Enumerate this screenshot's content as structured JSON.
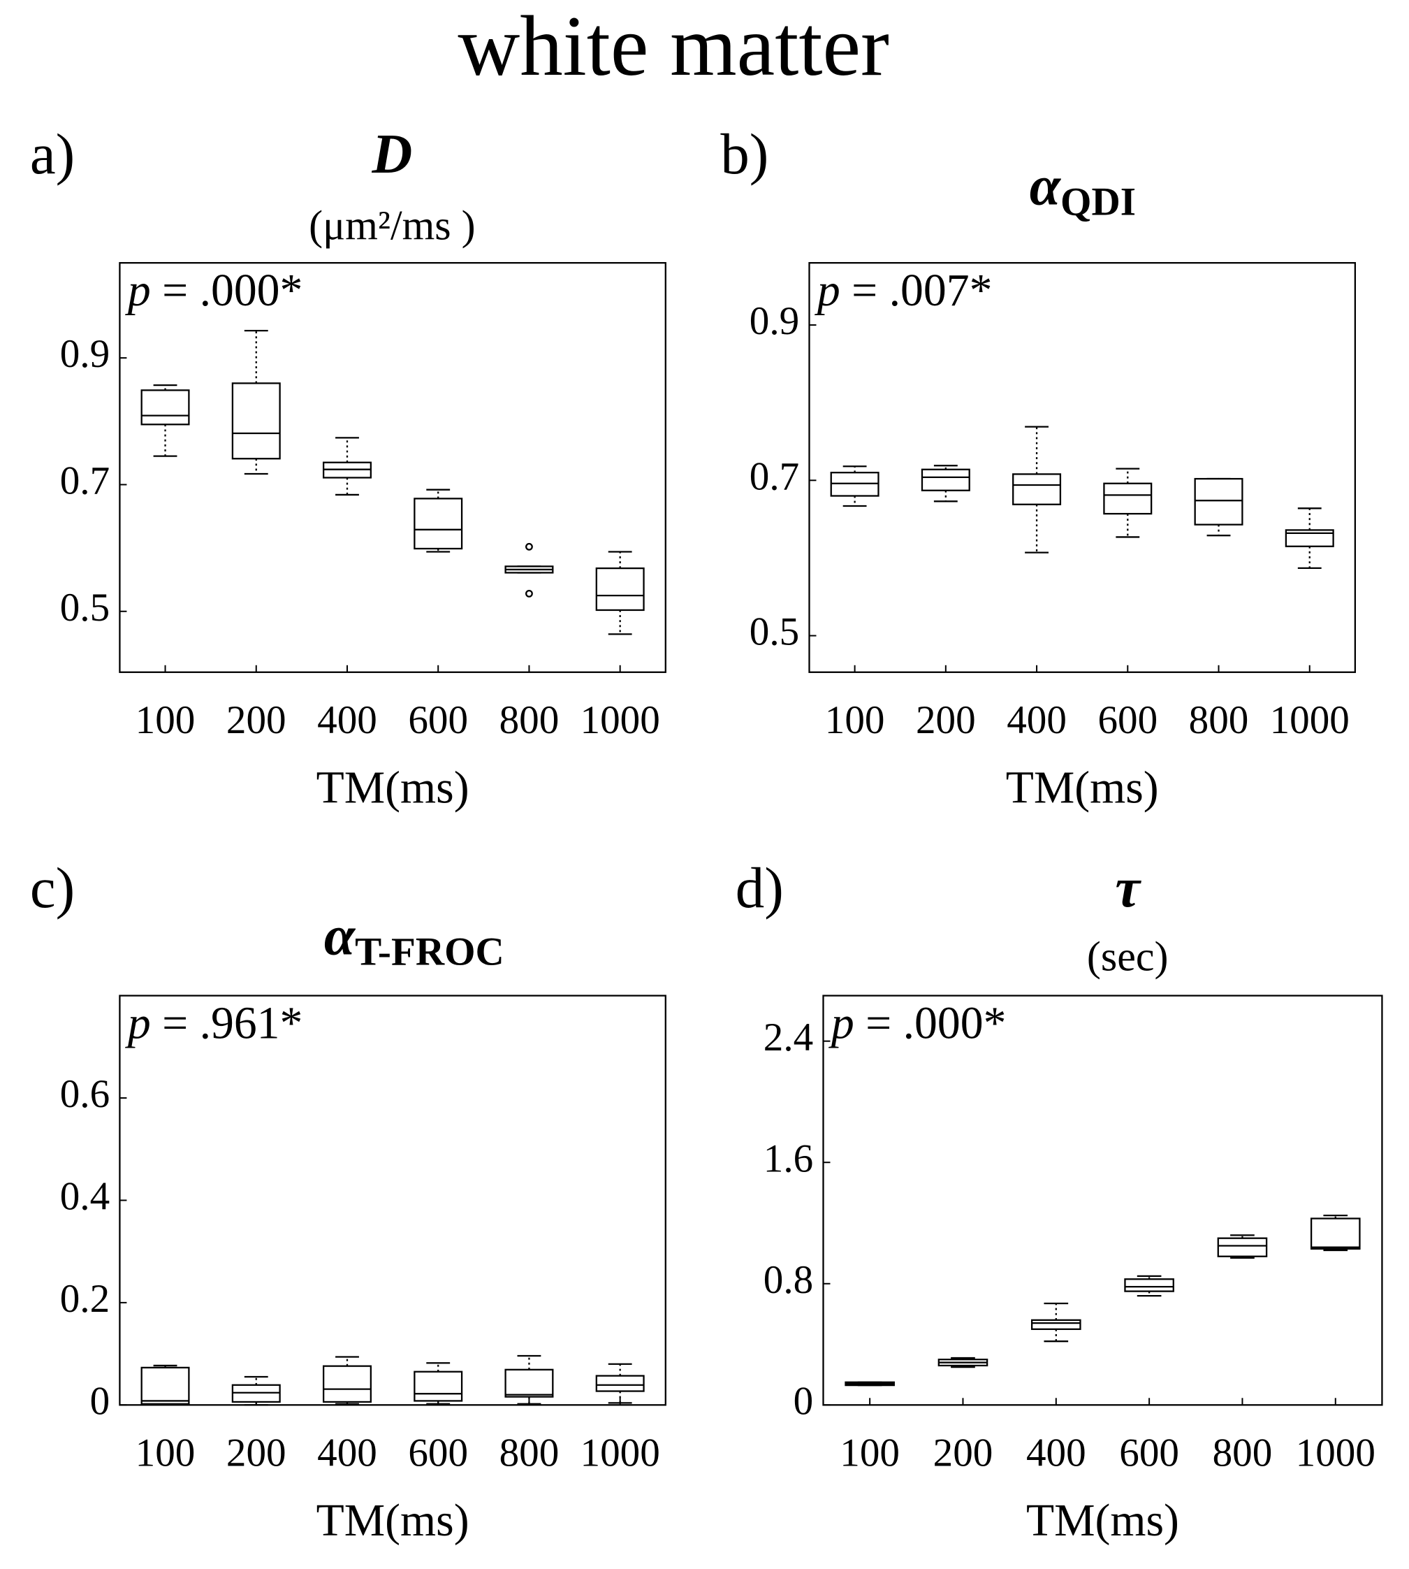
{
  "title": "white matter",
  "chart_data": [
    {
      "type": "box",
      "panel_label": "a)",
      "title": "D",
      "subtitle": "(μm²/ms )",
      "annotation_symbol": "p",
      "annotation": "= .000*",
      "x_label": "TM(ms)",
      "categories": [
        "100",
        "200",
        "400",
        "600",
        "800",
        "1000"
      ],
      "boxes": [
        {
          "min": 0.745,
          "q1": 0.795,
          "median": 0.809,
          "q3": 0.849,
          "max": 0.857
        },
        {
          "min": 0.717,
          "q1": 0.741,
          "median": 0.781,
          "q3": 0.86,
          "max": 0.943
        },
        {
          "min": 0.684,
          "q1": 0.711,
          "median": 0.724,
          "q3": 0.735,
          "max": 0.774
        },
        {
          "min": 0.594,
          "q1": 0.599,
          "median": 0.629,
          "q3": 0.678,
          "max": 0.692
        },
        {
          "min": 0.561,
          "q1": 0.561,
          "median": 0.566,
          "q3": 0.571,
          "max": 0.571,
          "outliers": [
            0.602,
            0.528
          ]
        },
        {
          "min": 0.464,
          "q1": 0.502,
          "median": 0.525,
          "q3": 0.568,
          "max": 0.594
        }
      ],
      "ylim": [
        0.404,
        1.05
      ],
      "yticks": [
        0.5,
        0.7,
        0.9
      ]
    },
    {
      "type": "box",
      "panel_label": "b)",
      "title": "α",
      "title_subscript": "QDI",
      "annotation_symbol": "p",
      "annotation": "= .007*",
      "x_label": "TM(ms)",
      "categories": [
        "100",
        "200",
        "400",
        "600",
        "800",
        "1000"
      ],
      "boxes": [
        {
          "min": 0.667,
          "q1": 0.68,
          "median": 0.696,
          "q3": 0.71,
          "max": 0.718
        },
        {
          "min": 0.673,
          "q1": 0.687,
          "median": 0.704,
          "q3": 0.714,
          "max": 0.719
        },
        {
          "min": 0.607,
          "q1": 0.669,
          "median": 0.694,
          "q3": 0.708,
          "max": 0.769
        },
        {
          "min": 0.627,
          "q1": 0.657,
          "median": 0.681,
          "q3": 0.696,
          "max": 0.715
        },
        {
          "min": 0.629,
          "q1": 0.643,
          "median": 0.674,
          "q3": 0.702,
          "max": 0.702
        },
        {
          "min": 0.587,
          "q1": 0.615,
          "median": 0.632,
          "q3": 0.636,
          "max": 0.664
        }
      ],
      "ylim": [
        0.453,
        0.98
      ],
      "yticks": [
        0.5,
        0.7,
        0.9
      ]
    },
    {
      "type": "box",
      "panel_label": "c)",
      "title": "α",
      "title_subscript": "T-FROC",
      "annotation_symbol": "p",
      "annotation": "= .961*",
      "x_label": "TM(ms)",
      "categories": [
        "100",
        "200",
        "400",
        "600",
        "800",
        "1000"
      ],
      "boxes": [
        {
          "min": 0.002,
          "q1": 0.002,
          "median": 0.008,
          "q3": 0.073,
          "max": 0.077
        },
        {
          "min": 0,
          "q1": 0.006,
          "median": 0.024,
          "q3": 0.039,
          "max": 0.055
        },
        {
          "min": 0.002,
          "q1": 0.006,
          "median": 0.031,
          "q3": 0.076,
          "max": 0.094
        },
        {
          "min": 0.002,
          "q1": 0.008,
          "median": 0.022,
          "q3": 0.065,
          "max": 0.082
        },
        {
          "min": 0.002,
          "q1": 0.016,
          "median": 0.02,
          "q3": 0.069,
          "max": 0.096
        },
        {
          "min": 0.004,
          "q1": 0.027,
          "median": 0.039,
          "q3": 0.057,
          "max": 0.08
        }
      ],
      "ylim": [
        0,
        0.8
      ],
      "yticks": [
        0,
        0.2,
        0.4,
        0.6
      ]
    },
    {
      "type": "box",
      "panel_label": "d)",
      "title": "τ",
      "subtitle": "(sec)",
      "annotation_symbol": "p",
      "annotation": "= .000*",
      "x_label": "TM(ms)",
      "categories": [
        "100",
        "200",
        "400",
        "600",
        "800",
        "1000"
      ],
      "boxes": [
        {
          "min": 0.13,
          "q1": 0.13,
          "median": 0.14,
          "q3": 0.15,
          "max": 0.15
        },
        {
          "min": 0.25,
          "q1": 0.26,
          "median": 0.28,
          "q3": 0.3,
          "max": 0.31
        },
        {
          "min": 0.42,
          "q1": 0.5,
          "median": 0.54,
          "q3": 0.56,
          "max": 0.67
        },
        {
          "min": 0.72,
          "q1": 0.75,
          "median": 0.78,
          "q3": 0.83,
          "max": 0.85
        },
        {
          "min": 0.97,
          "q1": 0.98,
          "median": 1.05,
          "q3": 1.1,
          "max": 1.12
        },
        {
          "min": 1.02,
          "q1": 1.03,
          "median": 1.04,
          "q3": 1.23,
          "max": 1.25
        }
      ],
      "ylim": [
        0,
        2.7
      ],
      "yticks": [
        0,
        0.8,
        1.6,
        2.4
      ]
    }
  ]
}
